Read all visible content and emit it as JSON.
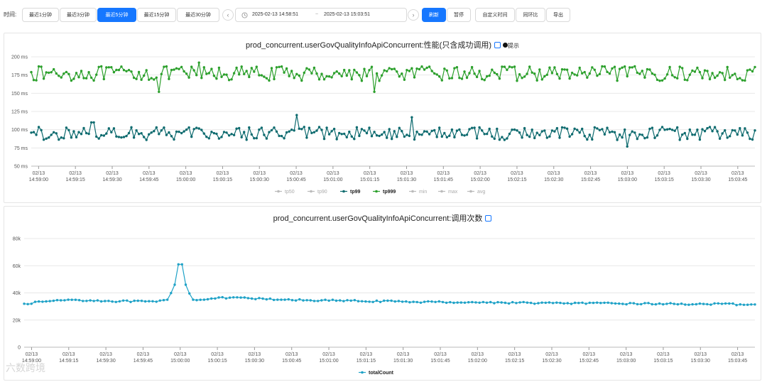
{
  "toolbar": {
    "time_label": "时间:",
    "quick_ranges": [
      "最近1分钟",
      "最近3分钟",
      "最近5分钟",
      "最近15分钟",
      "最近30分钟"
    ],
    "active_index": 2,
    "range_start": "2025-02-13 14:58:51",
    "range_sep": "~",
    "range_end": "2025-02-13 15:03:51",
    "refresh_label": "刷新",
    "pause_label": "暂停",
    "custom_label": "自定义时间",
    "compare_label": "同环比",
    "export_label": "导出",
    "accent": "#1677ff"
  },
  "perf_panel": {
    "title": "prod_concurrent.userGovQualityInfoApiConcurrent:性能(只含成功调用)",
    "hint": "提示"
  },
  "count_panel": {
    "title": "prod_concurrent.userGovQualityInfoApiConcurrent:调用次数"
  },
  "x_ticks": [
    [
      "02/13",
      "14:59:00"
    ],
    [
      "02/13",
      "14:59:15"
    ],
    [
      "02/13",
      "14:59:30"
    ],
    [
      "02/13",
      "14:59:45"
    ],
    [
      "02/13",
      "15:00:00"
    ],
    [
      "02/13",
      "15:00:15"
    ],
    [
      "02/13",
      "15:00:30"
    ],
    [
      "02/13",
      "15:00:45"
    ],
    [
      "02/13",
      "15:01:00"
    ],
    [
      "02/13",
      "15:01:15"
    ],
    [
      "02/13",
      "15:01:30"
    ],
    [
      "02/13",
      "15:01:45"
    ],
    [
      "02/13",
      "15:02:00"
    ],
    [
      "02/13",
      "15:02:15"
    ],
    [
      "02/13",
      "15:02:30"
    ],
    [
      "02/13",
      "15:02:45"
    ],
    [
      "02/13",
      "15:03:00"
    ],
    [
      "02/13",
      "15:03:15"
    ],
    [
      "02/13",
      "15:03:30"
    ],
    [
      "02/13",
      "15:03:45"
    ]
  ],
  "chart_data": [
    {
      "type": "line",
      "title": "prod_concurrent.userGovQualityInfoApiConcurrent:性能(只含成功调用)",
      "y_tick_labels": [
        "200 ms",
        "175 ms",
        "150 ms",
        "125 ms",
        "100 ms",
        "75 ms",
        "50 ms"
      ],
      "ylim": [
        50,
        200
      ],
      "x_range": [
        "14:58:57",
        "15:03:52"
      ],
      "grid": true,
      "legend_position": "bottom",
      "legend": [
        {
          "name": "tp50",
          "color": "#bbbbbb",
          "active": false
        },
        {
          "name": "tp90",
          "color": "#bbbbbb",
          "active": false
        },
        {
          "name": "tp99",
          "color": "#0e6b6f",
          "active": true
        },
        {
          "name": "tp999",
          "color": "#2ca02c",
          "active": true
        },
        {
          "name": "min",
          "color": "#bbbbbb",
          "active": false
        },
        {
          "name": "max",
          "color": "#bbbbbb",
          "active": false
        },
        {
          "name": "avg",
          "color": "#bbbbbb",
          "active": false
        }
      ],
      "series": [
        {
          "name": "tp999",
          "color": "#2ca02c",
          "base": 177,
          "amp": 10,
          "count": 290,
          "key_points": [
            {
              "x": "14:58:57",
              "y": 179
            },
            {
              "x": "14:59:49",
              "y": 152
            },
            {
              "x": "15:00:05",
              "y": 192
            },
            {
              "x": "15:01:17",
              "y": 152
            },
            {
              "x": "15:03:52",
              "y": 186
            }
          ]
        },
        {
          "name": "tp99",
          "color": "#0e6b6f",
          "base": 95,
          "amp": 9,
          "count": 290,
          "key_points": [
            {
              "x": "14:58:57",
              "y": 96
            },
            {
              "x": "14:59:22",
              "y": 110
            },
            {
              "x": "15:00:45",
              "y": 120
            },
            {
              "x": "15:01:32",
              "y": 117
            },
            {
              "x": "15:03:00",
              "y": 77
            },
            {
              "x": "15:03:52",
              "y": 99
            }
          ]
        }
      ]
    },
    {
      "type": "line",
      "title": "prod_concurrent.userGovQualityInfoApiConcurrent:调用次数",
      "y_tick_labels": [
        "80k",
        "60k",
        "40k",
        "20k",
        "0"
      ],
      "ylim": [
        0,
        80000
      ],
      "x_range": [
        "14:58:57",
        "15:03:52"
      ],
      "grid": true,
      "legend_position": "bottom",
      "legend": [
        {
          "name": "totalCount",
          "color": "#1fa2c7",
          "active": true
        }
      ],
      "series": [
        {
          "name": "totalCount",
          "color": "#1fa2c7",
          "count": 200,
          "key_points": [
            {
              "x": "14:58:57",
              "y": 32000
            },
            {
              "x": "14:59:05",
              "y": 33500
            },
            {
              "x": "14:59:15",
              "y": 35000
            },
            {
              "x": "14:59:30",
              "y": 34000
            },
            {
              "x": "14:59:50",
              "y": 33500
            },
            {
              "x": "14:59:55",
              "y": 35000
            },
            {
              "x": "14:59:58",
              "y": 46000
            },
            {
              "x": "15:00:00",
              "y": 61000
            },
            {
              "x": "15:00:02",
              "y": 46000
            },
            {
              "x": "15:00:05",
              "y": 35000
            },
            {
              "x": "15:00:20",
              "y": 36500
            },
            {
              "x": "15:00:40",
              "y": 35000
            },
            {
              "x": "15:01:30",
              "y": 33500
            },
            {
              "x": "15:02:30",
              "y": 32500
            },
            {
              "x": "15:03:52",
              "y": 31500
            }
          ]
        }
      ]
    }
  ],
  "watermark": "六数跨境"
}
